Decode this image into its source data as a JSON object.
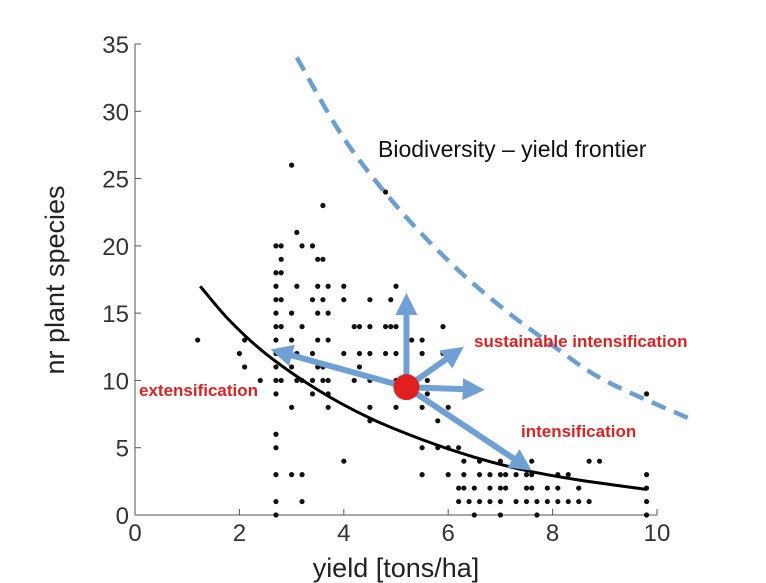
{
  "chart_data": {
    "type": "scatter",
    "xlabel": "yield [tons/ha]",
    "ylabel": "nr plant species",
    "xlim": [
      0,
      10
    ],
    "ylim": [
      0,
      35
    ],
    "x_ticks": [
      "0",
      "2",
      "4",
      "6",
      "8",
      "10"
    ],
    "y_ticks": [
      "0",
      "5",
      "10",
      "15",
      "20",
      "25",
      "30",
      "35"
    ],
    "grid": false,
    "points": [
      [
        1.2,
        13
      ],
      [
        2.0,
        12
      ],
      [
        2.1,
        13
      ],
      [
        2.1,
        11
      ],
      [
        2.4,
        10
      ],
      [
        2.7,
        20
      ],
      [
        2.7,
        18
      ],
      [
        2.7,
        17
      ],
      [
        2.7,
        16
      ],
      [
        2.7,
        15
      ],
      [
        2.7,
        14
      ],
      [
        2.7,
        13
      ],
      [
        2.7,
        12
      ],
      [
        2.7,
        11
      ],
      [
        2.7,
        10
      ],
      [
        2.7,
        9
      ],
      [
        2.7,
        6
      ],
      [
        2.7,
        5
      ],
      [
        2.7,
        3
      ],
      [
        2.7,
        1
      ],
      [
        2.7,
        0
      ],
      [
        2.8,
        20
      ],
      [
        2.8,
        19
      ],
      [
        2.8,
        18
      ],
      [
        2.8,
        16
      ],
      [
        2.8,
        14
      ],
      [
        2.8,
        12
      ],
      [
        2.8,
        10
      ],
      [
        3.0,
        26
      ],
      [
        3.0,
        15
      ],
      [
        3.0,
        13
      ],
      [
        3.0,
        11
      ],
      [
        3.0,
        8
      ],
      [
        3.0,
        3
      ],
      [
        3.1,
        21
      ],
      [
        3.1,
        17
      ],
      [
        3.1,
        12
      ],
      [
        3.1,
        10
      ],
      [
        3.2,
        20
      ],
      [
        3.2,
        14
      ],
      [
        3.2,
        10
      ],
      [
        3.2,
        3
      ],
      [
        3.2,
        1
      ],
      [
        3.4,
        20
      ],
      [
        3.4,
        16
      ],
      [
        3.4,
        12
      ],
      [
        3.4,
        10
      ],
      [
        3.4,
        9
      ],
      [
        3.5,
        19
      ],
      [
        3.5,
        17
      ],
      [
        3.5,
        15
      ],
      [
        3.5,
        13
      ],
      [
        3.5,
        11
      ],
      [
        3.6,
        23
      ],
      [
        3.6,
        19
      ],
      [
        3.6,
        16
      ],
      [
        3.6,
        11
      ],
      [
        3.6,
        10
      ],
      [
        3.7,
        17
      ],
      [
        3.7,
        15
      ],
      [
        3.7,
        13
      ],
      [
        3.7,
        10
      ],
      [
        3.7,
        9
      ],
      [
        3.7,
        8
      ],
      [
        4.0,
        17
      ],
      [
        4.0,
        16
      ],
      [
        4.0,
        12
      ],
      [
        4.0,
        4
      ],
      [
        4.2,
        14
      ],
      [
        4.2,
        10
      ],
      [
        4.3,
        14
      ],
      [
        4.3,
        12
      ],
      [
        4.3,
        11
      ],
      [
        4.5,
        16
      ],
      [
        4.5,
        14
      ],
      [
        4.5,
        12
      ],
      [
        4.5,
        10
      ],
      [
        4.5,
        8
      ],
      [
        4.5,
        7
      ],
      [
        4.8,
        24
      ],
      [
        4.8,
        14
      ],
      [
        4.8,
        12
      ],
      [
        4.9,
        16
      ],
      [
        4.9,
        14
      ],
      [
        5.0,
        17
      ],
      [
        5.0,
        14
      ],
      [
        5.0,
        12
      ],
      [
        5.0,
        10
      ],
      [
        5.0,
        8
      ],
      [
        5.3,
        13
      ],
      [
        5.5,
        13
      ],
      [
        5.5,
        12
      ],
      [
        5.5,
        8
      ],
      [
        5.5,
        5
      ],
      [
        5.5,
        3
      ],
      [
        5.6,
        10
      ],
      [
        5.6,
        9
      ],
      [
        5.8,
        7
      ],
      [
        5.8,
        5
      ],
      [
        5.9,
        14
      ],
      [
        5.9,
        12
      ],
      [
        6.0,
        8
      ],
      [
        6.0,
        5
      ],
      [
        6.0,
        3
      ],
      [
        6.2,
        5
      ],
      [
        6.2,
        2
      ],
      [
        6.2,
        1
      ],
      [
        6.3,
        4
      ],
      [
        6.3,
        3
      ],
      [
        6.3,
        2
      ],
      [
        6.4,
        1
      ],
      [
        6.5,
        2
      ],
      [
        6.5,
        0
      ],
      [
        6.6,
        4
      ],
      [
        6.6,
        3
      ],
      [
        6.6,
        1
      ],
      [
        6.8,
        3
      ],
      [
        6.8,
        2
      ],
      [
        6.8,
        1
      ],
      [
        7.0,
        4
      ],
      [
        7.0,
        3
      ],
      [
        7.0,
        2
      ],
      [
        7.0,
        1
      ],
      [
        7.0,
        0
      ],
      [
        7.1,
        3
      ],
      [
        7.1,
        2
      ],
      [
        7.3,
        4
      ],
      [
        7.3,
        3
      ],
      [
        7.3,
        1
      ],
      [
        7.5,
        3
      ],
      [
        7.5,
        2
      ],
      [
        7.5,
        1
      ],
      [
        7.6,
        4
      ],
      [
        7.6,
        3
      ],
      [
        7.6,
        2
      ],
      [
        7.7,
        1
      ],
      [
        7.7,
        0
      ],
      [
        7.9,
        2
      ],
      [
        7.9,
        1
      ],
      [
        8.1,
        3
      ],
      [
        8.1,
        2
      ],
      [
        8.1,
        1
      ],
      [
        8.3,
        3
      ],
      [
        8.3,
        1
      ],
      [
        8.5,
        2
      ],
      [
        8.5,
        1
      ],
      [
        8.7,
        4
      ],
      [
        8.7,
        1
      ],
      [
        8.9,
        4
      ],
      [
        9.8,
        9
      ],
      [
        9.8,
        3
      ],
      [
        9.8,
        2
      ],
      [
        9.8,
        1
      ],
      [
        9.8,
        0
      ]
    ],
    "fit_curve": [
      [
        1.25,
        17.0
      ],
      [
        1.8,
        14.5
      ],
      [
        2.5,
        12.0
      ],
      [
        3.5,
        9.3
      ],
      [
        4.5,
        7.2
      ],
      [
        5.5,
        5.6
      ],
      [
        6.5,
        4.3
      ],
      [
        7.5,
        3.3
      ],
      [
        8.5,
        2.6
      ],
      [
        9.8,
        1.9
      ]
    ],
    "frontier_curve": [
      [
        3.1,
        34.0
      ],
      [
        4.0,
        28.0
      ],
      [
        5.0,
        23.0
      ],
      [
        6.0,
        18.9
      ],
      [
        7.0,
        15.5
      ],
      [
        8.0,
        12.6
      ],
      [
        9.0,
        10.0
      ],
      [
        10.6,
        7.2
      ]
    ],
    "frontier_label": "Biodiversity – yield frontier",
    "origin": [
      5.2,
      9.5
    ],
    "arrows": [
      {
        "to": [
          2.6,
          12.3
        ]
      },
      {
        "to": [
          5.2,
          16.5
        ]
      },
      {
        "to": [
          6.3,
          12.5
        ]
      },
      {
        "to": [
          6.7,
          9.3
        ]
      },
      {
        "to": [
          7.6,
          3.3
        ]
      }
    ],
    "annotations": {
      "extensification": "extensification",
      "sustainable_intensification": "sustainable intensification",
      "intensification": "intensification"
    },
    "colors": {
      "points": "#111111",
      "fit_curve": "#000000",
      "frontier": "#6b9fd0",
      "arrows": "#6fa0d4",
      "origin": "#e02020",
      "annotation_text": "#dc2222"
    }
  }
}
